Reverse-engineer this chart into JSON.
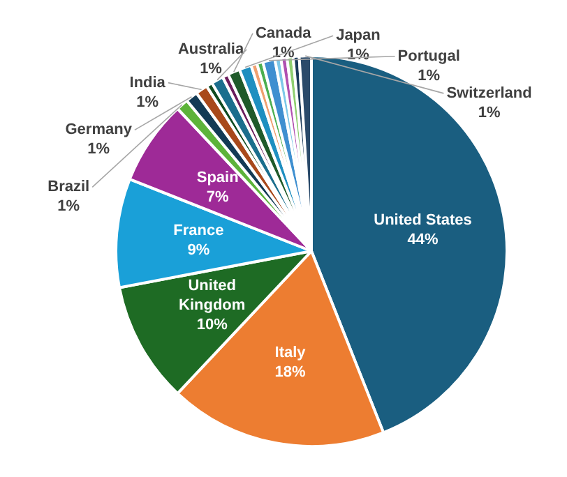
{
  "chart_data": {
    "type": "pie",
    "categories": [
      "United States",
      "Italy",
      "United Kingdom",
      "France",
      "Spain",
      "Brazil",
      "Germany",
      "India",
      null,
      "Australia",
      null,
      "Canada",
      "Japan",
      null,
      null,
      "Portugal",
      null,
      null,
      null,
      null,
      "Switzerland"
    ],
    "values": [
      44,
      18,
      10,
      9,
      7,
      1,
      1,
      1,
      0.5,
      1,
      0.5,
      1,
      1,
      0.5,
      0.5,
      1,
      0.5,
      0.5,
      0.5,
      0.5,
      1
    ],
    "colors": [
      "#1a5e80",
      "#ed7d31",
      "#1e6b24",
      "#1aa0d8",
      "#9e2a97",
      "#5db33a",
      "#133a55",
      "#a8491b",
      "#0f4a1f",
      "#1b6e8d",
      "#6b1d5c",
      "#1f5a2a",
      "#1f8fc0",
      "#f0a070",
      "#4caf50",
      "#3f8fd0",
      "#7ec8e8",
      "#b050b0",
      "#8fcf70",
      "#1a3a5a",
      "#2a4a6a"
    ],
    "value_labels": [
      "44%",
      "18%",
      "10%",
      "9%",
      "7%",
      "1%",
      "1%",
      "1%",
      null,
      "1%",
      null,
      "1%",
      "1%",
      null,
      null,
      "1%",
      null,
      null,
      null,
      null,
      "1%"
    ],
    "legend": false
  }
}
